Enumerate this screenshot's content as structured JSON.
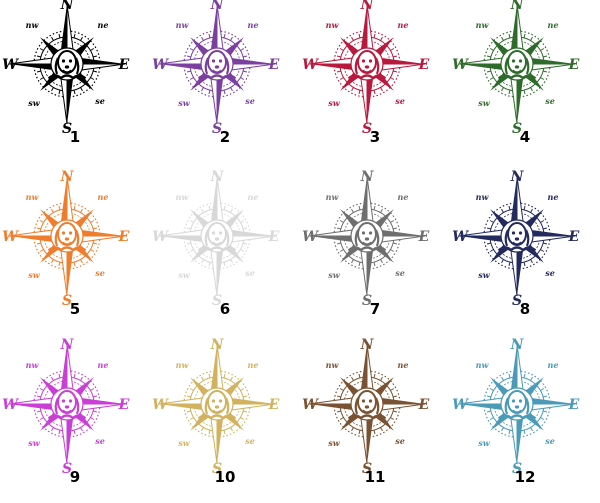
{
  "labels": {
    "n": "N",
    "e": "E",
    "s": "S",
    "w": "W",
    "nw": "nw",
    "ne": "ne",
    "sw": "sw",
    "se": "se"
  },
  "variants": [
    {
      "number": "1",
      "color": "#000000"
    },
    {
      "number": "2",
      "color": "#7b3fa0"
    },
    {
      "number": "3",
      "color": "#b8193d"
    },
    {
      "number": "4",
      "color": "#2e6b2a"
    },
    {
      "number": "5",
      "color": "#ef7d2e"
    },
    {
      "number": "6",
      "color": "#d8d8d8"
    },
    {
      "number": "7",
      "color": "#6e6e6e"
    },
    {
      "number": "8",
      "color": "#232a5e"
    },
    {
      "number": "9",
      "color": "#c93fd6"
    },
    {
      "number": "10",
      "color": "#d2b25e"
    },
    {
      "number": "11",
      "color": "#7a5232"
    },
    {
      "number": "12",
      "color": "#4a9ab8"
    }
  ]
}
